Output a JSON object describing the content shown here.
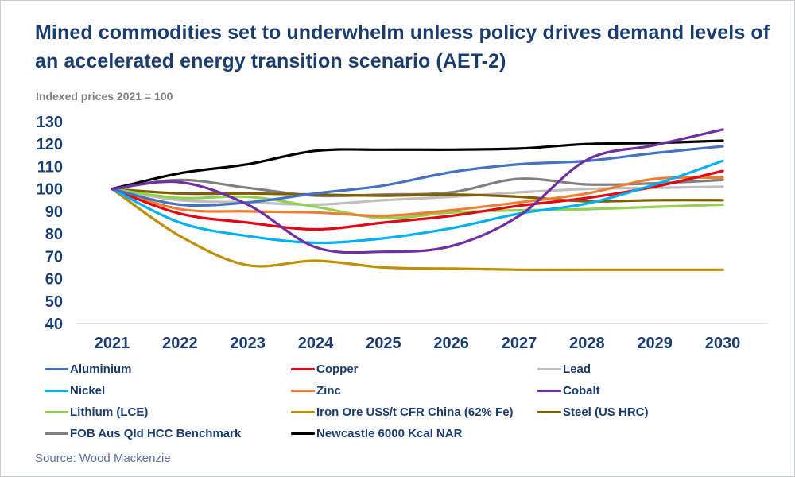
{
  "header": {
    "title": "Mined commodities set to underwhelm unless policy drives demand levels of an accelerated energy transition scenario (AET-2)",
    "subtitle": "Indexed prices 2021 = 100"
  },
  "source": "Source: Wood Mackenzie",
  "colors": {
    "title_navy": "#1B3C6E",
    "axis_label_navy": "#1B3C6E",
    "legend_text_navy": "#1B3C6E",
    "subtitle_gray": "#7F7F7F",
    "source_slate_blue": "#5B7199",
    "axis_line_gray": "#D9D9D9",
    "background": "#FFFFFF"
  },
  "chart_data": {
    "type": "line",
    "title": "Mined commodities set to underwhelm unless policy drives demand levels of an accelerated energy transition scenario (AET-2)",
    "ylabel": "Indexed prices 2021 = 100",
    "xlabel": "",
    "x": [
      2021,
      2022,
      2023,
      2024,
      2025,
      2026,
      2027,
      2028,
      2029,
      2030
    ],
    "ylim": [
      40,
      130
    ],
    "ytick_step": 10,
    "grid": false,
    "legend_position": "bottom",
    "series": [
      {
        "name": "Aluminium",
        "color": "#4472C4",
        "values": [
          100,
          93,
          94,
          98,
          101.5,
          107.5,
          111,
          112.5,
          116,
          119
        ]
      },
      {
        "name": "Copper",
        "color": "#E30613",
        "values": [
          100,
          89,
          85,
          82,
          85,
          88,
          92.5,
          96,
          101,
          108
        ]
      },
      {
        "name": "Lead",
        "color": "#BFBFBF",
        "values": [
          100,
          95,
          94,
          93,
          95,
          96.5,
          98.5,
          100,
          100.5,
          101
        ]
      },
      {
        "name": "Nickel",
        "color": "#00B0F0",
        "values": [
          100,
          85,
          79,
          76,
          78,
          82.5,
          89,
          93.5,
          102,
          112.5
        ]
      },
      {
        "name": "Zinc",
        "color": "#ED7D31",
        "values": [
          100,
          91,
          90,
          89.5,
          88,
          90.5,
          94,
          98,
          104.5,
          105
        ]
      },
      {
        "name": "Cobalt",
        "color": "#7030A0",
        "values": [
          100,
          103,
          93,
          74,
          72,
          74.5,
          88,
          113,
          119.5,
          126.5
        ]
      },
      {
        "name": "Lithium (LCE)",
        "color": "#92D050",
        "values": [
          100,
          96,
          96.5,
          92,
          87,
          89.5,
          90.5,
          91,
          92,
          93
        ]
      },
      {
        "name": "Iron Ore US$/t CFR China (62% Fe)",
        "color": "#BF8F00",
        "values": [
          100,
          79,
          66,
          68,
          65,
          64.5,
          64,
          64,
          64,
          64
        ]
      },
      {
        "name": "Steel (US HRC)",
        "color": "#7F6000",
        "values": [
          100,
          98,
          98,
          97.5,
          97,
          97.5,
          96.5,
          94.5,
          95,
          95
        ]
      },
      {
        "name": "FOB Aus Qld HCC Benchmark",
        "color": "#808080",
        "values": [
          100,
          104,
          100.5,
          97,
          97.5,
          98.5,
          104.5,
          102,
          102.5,
          104
        ]
      },
      {
        "name": "Newcastle 6000 Kcal NAR",
        "color": "#000000",
        "values": [
          100,
          107,
          111,
          117,
          117.5,
          117.5,
          118,
          120,
          120.5,
          121.5
        ]
      }
    ]
  }
}
